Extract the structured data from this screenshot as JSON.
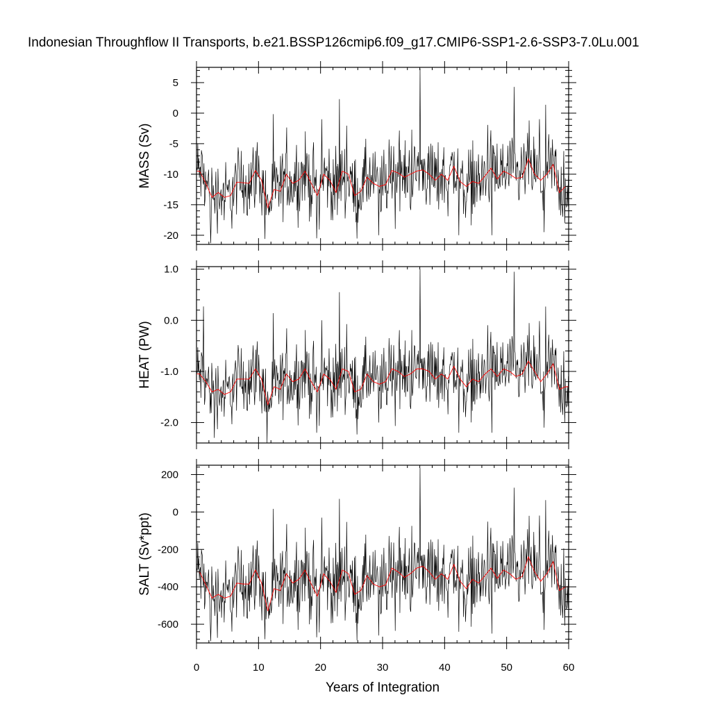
{
  "title": "Indonesian Throughflow II Transports, b.e21.BSSP126cmip6.f09_g17.CMIP6-SSP1-2.6-SSP3-7.0Lu.001",
  "xlabel": "Years of Integration",
  "colors": {
    "raw": "#000000",
    "smooth": "#ff0000",
    "frame": "#000000",
    "background": "#ffffff"
  },
  "chart_data": [
    {
      "type": "line",
      "name": "mass",
      "ylabel": "MASS (Sv)",
      "xlim": [
        0,
        60
      ],
      "ylim": [
        -21.5,
        7.5
      ],
      "yticks": [
        5,
        0,
        -5,
        -10,
        -15,
        -20
      ],
      "ytick_labels": [
        "5",
        "0",
        "-5",
        "-10",
        "-15",
        "-20"
      ],
      "xticks": [
        0,
        10,
        20,
        30,
        40,
        50,
        60
      ],
      "series": [
        {
          "role": "monthly",
          "mean": -10.8,
          "amp": 3.6,
          "spikes": [
            [
              2.3,
              -21.3
            ],
            [
              11.0,
              -20.6
            ],
            [
              19.4,
              -20.5
            ],
            [
              20.2,
              -1.0
            ],
            [
              23.0,
              2.3
            ],
            [
              29.4,
              -20.0
            ],
            [
              36.0,
              7.3
            ],
            [
              42.3,
              -20.0
            ],
            [
              47.6,
              -20.0
            ],
            [
              51.2,
              4.3
            ],
            [
              56.0,
              -19.5
            ]
          ]
        },
        {
          "role": "annual-mean",
          "x": [
            0,
            0.5,
            1.5,
            2.5,
            3.5,
            4.5,
            5.5,
            6.5,
            7.5,
            8.5,
            9.5,
            10.5,
            11.5,
            12.5,
            13.5,
            14.5,
            15.5,
            16.5,
            17.5,
            18.5,
            19.5,
            20.5,
            21.5,
            22.5,
            23.5,
            24.5,
            25.5,
            26.5,
            27.5,
            28.5,
            29.5,
            30.5,
            31.5,
            32.5,
            33.5,
            34.5,
            35.5,
            36.5,
            37.5,
            38.5,
            39.5,
            40.5,
            41.5,
            42.5,
            43.5,
            44.5,
            45.5,
            46.5,
            47.5,
            48.5,
            49.5,
            50.5,
            51.5,
            52.5,
            53.5,
            54.5,
            55.5,
            56.5,
            57.5,
            58.5,
            59.5,
            60
          ],
          "y": [
            -9.5,
            -9.5,
            -11.5,
            -13.8,
            -13.0,
            -13.8,
            -13.5,
            -11.3,
            -11.4,
            -11.5,
            -9.4,
            -11.0,
            -15.5,
            -12.5,
            -12.8,
            -10.0,
            -11.5,
            -11.0,
            -9.5,
            -11.5,
            -13.5,
            -10.0,
            -11.0,
            -13.0,
            -9.5,
            -10.0,
            -13.5,
            -12.8,
            -10.5,
            -11.5,
            -12.0,
            -11.7,
            -9.4,
            -9.8,
            -10.5,
            -10.0,
            -9.5,
            -9.3,
            -10.0,
            -11.0,
            -10.0,
            -11.0,
            -8.7,
            -11.2,
            -12.0,
            -11.2,
            -11.5,
            -10.3,
            -9.0,
            -10.8,
            -9.5,
            -10.0,
            -10.7,
            -10.5,
            -7.5,
            -10.0,
            -11.0,
            -10.0,
            -8.4,
            -13.0,
            -12.0,
            -12.0
          ]
        }
      ]
    },
    {
      "type": "line",
      "name": "heat",
      "ylabel": "HEAT (PW)",
      "xlim": [
        0,
        60
      ],
      "ylim": [
        -2.4,
        1.05
      ],
      "yticks": [
        1.0,
        0.0,
        -1.0,
        -2.0
      ],
      "ytick_labels": [
        "1.0",
        "0.0",
        "-1.0",
        "-2.0"
      ],
      "xticks": [
        0,
        10,
        20,
        30,
        40,
        50,
        60
      ],
      "series": [
        {
          "role": "monthly",
          "mean": -1.15,
          "amp": 0.42,
          "spikes": [
            [
              1.1,
              0.27
            ],
            [
              2.9,
              -2.3
            ],
            [
              11.4,
              -2.4
            ],
            [
              19.4,
              -2.2
            ],
            [
              20.2,
              0.0
            ],
            [
              23.0,
              0.55
            ],
            [
              29.4,
              -2.0
            ],
            [
              36.0,
              1.0
            ],
            [
              42.3,
              -2.2
            ],
            [
              47.6,
              -2.2
            ],
            [
              51.2,
              0.95
            ],
            [
              56.0,
              -2.1
            ]
          ]
        },
        {
          "role": "annual-mean",
          "x": [
            0,
            0.5,
            1.5,
            2.5,
            3.5,
            4.5,
            5.5,
            6.5,
            7.5,
            8.5,
            9.5,
            10.5,
            11.5,
            12.5,
            13.5,
            14.5,
            15.5,
            16.5,
            17.5,
            18.5,
            19.5,
            20.5,
            21.5,
            22.5,
            23.5,
            24.5,
            25.5,
            26.5,
            27.5,
            28.5,
            29.5,
            30.5,
            31.5,
            32.5,
            33.5,
            34.5,
            35.5,
            36.5,
            37.5,
            38.5,
            39.5,
            40.5,
            41.5,
            42.5,
            43.5,
            44.5,
            45.5,
            46.5,
            47.5,
            48.5,
            49.5,
            50.5,
            51.5,
            52.5,
            53.5,
            54.5,
            55.5,
            56.5,
            57.5,
            58.5,
            59.5,
            60
          ],
          "y": [
            -1.05,
            -1.05,
            -1.2,
            -1.4,
            -1.35,
            -1.45,
            -1.4,
            -1.15,
            -1.15,
            -1.15,
            -0.95,
            -1.15,
            -1.65,
            -1.3,
            -1.35,
            -1.05,
            -1.2,
            -1.15,
            -0.95,
            -1.2,
            -1.4,
            -1.05,
            -1.15,
            -1.35,
            -0.95,
            -1.0,
            -1.4,
            -1.35,
            -1.05,
            -1.2,
            -1.25,
            -1.2,
            -0.95,
            -1.0,
            -1.1,
            -1.05,
            -0.95,
            -0.95,
            -1.0,
            -1.15,
            -1.05,
            -1.15,
            -0.9,
            -1.15,
            -1.3,
            -1.15,
            -1.2,
            -1.05,
            -0.95,
            -1.1,
            -0.95,
            -1.0,
            -1.1,
            -1.05,
            -0.8,
            -1.0,
            -1.2,
            -1.05,
            -0.85,
            -1.35,
            -1.3,
            -1.3
          ]
        }
      ]
    },
    {
      "type": "line",
      "name": "salt",
      "ylabel": "SALT (Sv*ppt)",
      "xlim": [
        0,
        60
      ],
      "ylim": [
        -700,
        250
      ],
      "yticks": [
        200,
        0,
        -200,
        -400,
        -600
      ],
      "ytick_labels": [
        "200",
        "0",
        "-200",
        "-400",
        "-600"
      ],
      "xticks": [
        0,
        10,
        20,
        30,
        40,
        50,
        60
      ],
      "xtick_labels": [
        "0",
        "10",
        "20",
        "30",
        "40",
        "50",
        "60"
      ],
      "series": [
        {
          "role": "monthly",
          "mean": -365,
          "amp": 125,
          "spikes": [
            [
              2.3,
              -690
            ],
            [
              11.0,
              -680
            ],
            [
              19.4,
              -670
            ],
            [
              20.2,
              -30
            ],
            [
              23.0,
              70
            ],
            [
              29.4,
              -660
            ],
            [
              36.0,
              235
            ],
            [
              42.3,
              -640
            ],
            [
              47.6,
              -650
            ],
            [
              51.2,
              130
            ],
            [
              56.0,
              -630
            ]
          ]
        },
        {
          "role": "annual-mean",
          "x": [
            0,
            0.5,
            1.5,
            2.5,
            3.5,
            4.5,
            5.5,
            6.5,
            7.5,
            8.5,
            9.5,
            10.5,
            11.5,
            12.5,
            13.5,
            14.5,
            15.5,
            16.5,
            17.5,
            18.5,
            19.5,
            20.5,
            21.5,
            22.5,
            23.5,
            24.5,
            25.5,
            26.5,
            27.5,
            28.5,
            29.5,
            30.5,
            31.5,
            32.5,
            33.5,
            34.5,
            35.5,
            36.5,
            37.5,
            38.5,
            39.5,
            40.5,
            41.5,
            42.5,
            43.5,
            44.5,
            45.5,
            46.5,
            47.5,
            48.5,
            49.5,
            50.5,
            51.5,
            52.5,
            53.5,
            54.5,
            55.5,
            56.5,
            57.5,
            58.5,
            59.5,
            60
          ],
          "y": [
            -320,
            -320,
            -390,
            -460,
            -440,
            -460,
            -450,
            -380,
            -385,
            -385,
            -310,
            -380,
            -530,
            -410,
            -420,
            -330,
            -380,
            -360,
            -310,
            -385,
            -450,
            -330,
            -370,
            -430,
            -310,
            -330,
            -440,
            -420,
            -340,
            -385,
            -400,
            -390,
            -300,
            -320,
            -350,
            -330,
            -300,
            -290,
            -320,
            -360,
            -330,
            -360,
            -280,
            -370,
            -410,
            -360,
            -380,
            -340,
            -300,
            -355,
            -310,
            -330,
            -360,
            -345,
            -240,
            -320,
            -370,
            -330,
            -265,
            -420,
            -400,
            -400
          ]
        }
      ]
    }
  ]
}
